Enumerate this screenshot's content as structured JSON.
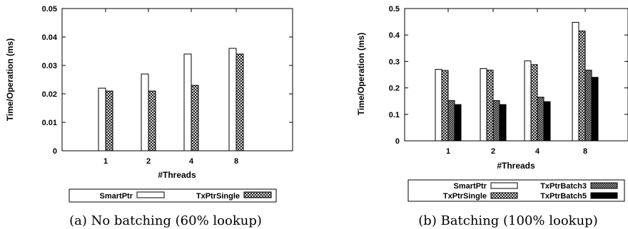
{
  "chart_data": [
    {
      "type": "bar",
      "caption": "(a) No batching (60% lookup)",
      "xlabel": "#Threads",
      "ylabel": "Time/Operation (ms)",
      "categories": [
        "1",
        "2",
        "4",
        "8"
      ],
      "ylim": [
        0,
        0.05
      ],
      "yticks": [
        "0",
        "0.01",
        "0.02",
        "0.03",
        "0.04",
        "0.05"
      ],
      "grid": false,
      "legend_position": "bottom",
      "series": [
        {
          "name": "SmartPtr",
          "pattern": "white",
          "values": [
            0.022,
            0.027,
            0.034,
            0.036
          ]
        },
        {
          "name": "TxPtrSingle",
          "pattern": "crosshatch",
          "values": [
            0.021,
            0.021,
            0.023,
            0.034
          ]
        }
      ]
    },
    {
      "type": "bar",
      "caption": "(b) Batching (100% lookup)",
      "xlabel": "#Threads",
      "ylabel": "Time/Operation (ms)",
      "categories": [
        "1",
        "2",
        "4",
        "8"
      ],
      "ylim": [
        0,
        0.5
      ],
      "yticks": [
        "0",
        "0.1",
        "0.2",
        "0.3",
        "0.4",
        "0.5"
      ],
      "grid": false,
      "legend_position": "bottom",
      "series": [
        {
          "name": "SmartPtr",
          "pattern": "white",
          "values": [
            0.27,
            0.273,
            0.302,
            0.448
          ]
        },
        {
          "name": "TxPtrSingle",
          "pattern": "crosshatch",
          "values": [
            0.266,
            0.267,
            0.288,
            0.415
          ]
        },
        {
          "name": "TxPtrBatch3",
          "pattern": "dense",
          "values": [
            0.152,
            0.152,
            0.165,
            0.267
          ]
        },
        {
          "name": "TxPtrBatch5",
          "pattern": "black",
          "values": [
            0.137,
            0.137,
            0.148,
            0.24
          ]
        }
      ]
    }
  ]
}
